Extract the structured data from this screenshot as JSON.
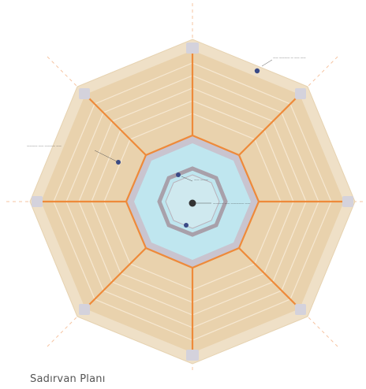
{
  "caption": "Sadırvan Planı",
  "colors": {
    "tile": "#e9d2ad",
    "tile_grout": "#f6e8d2",
    "border": "#efe0c7",
    "rib": "#ee8a3a",
    "ring": "#c9c4cf",
    "pool": "#bfe6ef",
    "basin_stone": "#a8a0aa",
    "pier": "#d4d2dc",
    "marker": "#3a4a86",
    "center": "#333333"
  },
  "callouts": [
    {
      "text": "—— ———— — —— ——"
    },
    {
      "text": "———— —— ———— ——"
    },
    {
      "text": "—— ———"
    },
    {
      "text": "———— —— ————— ——"
    }
  ]
}
